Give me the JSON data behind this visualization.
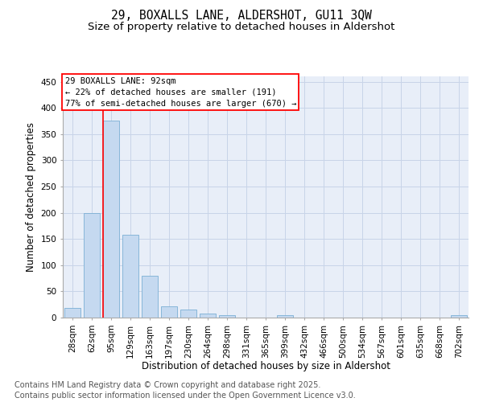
{
  "title_line1": "29, BOXALLS LANE, ALDERSHOT, GU11 3QW",
  "title_line2": "Size of property relative to detached houses in Aldershot",
  "xlabel": "Distribution of detached houses by size in Aldershot",
  "ylabel": "Number of detached properties",
  "bar_color": "#c5d9f0",
  "bar_edge_color": "#7bafd4",
  "categories": [
    "28sqm",
    "62sqm",
    "95sqm",
    "129sqm",
    "163sqm",
    "197sqm",
    "230sqm",
    "264sqm",
    "298sqm",
    "331sqm",
    "365sqm",
    "399sqm",
    "432sqm",
    "466sqm",
    "500sqm",
    "534sqm",
    "567sqm",
    "601sqm",
    "635sqm",
    "668sqm",
    "702sqm"
  ],
  "values": [
    18,
    200,
    375,
    158,
    80,
    22,
    15,
    8,
    5,
    0,
    0,
    4,
    0,
    0,
    0,
    0,
    0,
    0,
    0,
    0,
    4
  ],
  "ylim": [
    0,
    460
  ],
  "yticks": [
    0,
    50,
    100,
    150,
    200,
    250,
    300,
    350,
    400,
    450
  ],
  "annotation_line1": "29 BOXALLS LANE: 92sqm",
  "annotation_line2": "← 22% of detached houses are smaller (191)",
  "annotation_line3": "77% of semi-detached houses are larger (670) →",
  "vline_x": 1.6,
  "grid_color": "#c8d4e8",
  "background_color": "#e8eef8",
  "footer_line1": "Contains HM Land Registry data © Crown copyright and database right 2025.",
  "footer_line2": "Contains public sector information licensed under the Open Government Licence v3.0.",
  "title_fontsize": 10.5,
  "subtitle_fontsize": 9.5,
  "axis_label_fontsize": 8.5,
  "tick_fontsize": 7.5,
  "annotation_fontsize": 7.5,
  "footer_fontsize": 7.0
}
